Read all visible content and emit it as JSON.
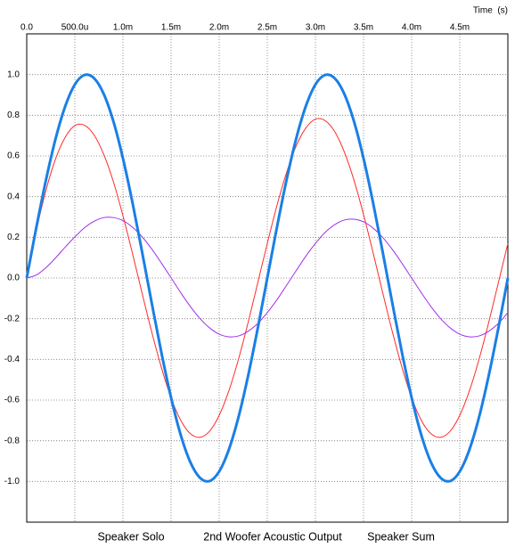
{
  "chart_data": {
    "type": "line",
    "xlabel": "Time  (s)",
    "x": [
      0,
      0.0001,
      0.0002,
      0.0003,
      0.0004,
      0.0005,
      0.0006,
      0.0007,
      0.0008,
      0.0009,
      0.001,
      0.0011,
      0.0012,
      0.0013,
      0.0014,
      0.0015,
      0.0016,
      0.0017,
      0.0018,
      0.0019,
      0.002,
      0.0021,
      0.0022,
      0.0023,
      0.0024,
      0.0025,
      0.0026,
      0.0027,
      0.0028,
      0.0029,
      0.003,
      0.0031,
      0.0032,
      0.0033,
      0.0034,
      0.0035,
      0.0036,
      0.0037,
      0.0038,
      0.0039,
      0.004,
      0.0041,
      0.0042,
      0.0043,
      0.0044,
      0.0045,
      0.0046,
      0.0047,
      0.0048,
      0.0049,
      0.005
    ],
    "series": [
      {
        "name": "Speaker Solo",
        "color": "#ff2a2a",
        "values": [
          0,
          0.234,
          0.431,
          0.586,
          0.692,
          0.749,
          0.751,
          0.703,
          0.608,
          0.474,
          0.306,
          0.119,
          -0.077,
          -0.267,
          -0.441,
          -0.589,
          -0.699,
          -0.765,
          -0.783,
          -0.753,
          -0.675,
          -0.555,
          -0.4,
          -0.22,
          -0.025,
          0.17,
          0.356,
          0.518,
          0.649,
          0.737,
          0.781,
          0.774,
          0.72,
          0.62,
          0.482,
          0.312,
          0.123,
          -0.074,
          -0.265,
          -0.44,
          -0.588,
          -0.699,
          -0.765,
          -0.783,
          -0.753,
          -0.675,
          -0.555,
          -0.4,
          -0.22,
          -0.025,
          0.17
        ]
      },
      {
        "name": "2nd Woofer Acoustic Output",
        "color": "#a030e8",
        "values": [
          0,
          0.015,
          0.051,
          0.099,
          0.152,
          0.202,
          0.247,
          0.279,
          0.297,
          0.297,
          0.282,
          0.249,
          0.202,
          0.142,
          0.073,
          0.001,
          -0.072,
          -0.14,
          -0.199,
          -0.245,
          -0.276,
          -0.289,
          -0.285,
          -0.262,
          -0.224,
          -0.17,
          -0.107,
          -0.036,
          0.036,
          0.107,
          0.17,
          0.224,
          0.262,
          0.285,
          0.289,
          0.276,
          0.245,
          0.199,
          0.14,
          0.072,
          0,
          -0.072,
          -0.14,
          -0.199,
          -0.245,
          -0.276,
          -0.289,
          -0.285,
          -0.262,
          -0.224,
          -0.17
        ]
      },
      {
        "name": "Speaker Sum",
        "color": "#1a7fe6",
        "values": [
          0,
          0.249,
          0.482,
          0.685,
          0.844,
          0.951,
          0.998,
          0.982,
          0.905,
          0.771,
          0.588,
          0.368,
          0.125,
          -0.125,
          -0.368,
          -0.588,
          -0.771,
          -0.905,
          -0.982,
          -0.998,
          -0.951,
          -0.844,
          -0.685,
          -0.482,
          -0.249,
          0,
          0.249,
          0.482,
          0.685,
          0.844,
          0.951,
          0.998,
          0.982,
          0.905,
          0.771,
          0.588,
          0.368,
          0.125,
          -0.125,
          -0.368,
          -0.588,
          -0.771,
          -0.905,
          -0.982,
          -0.998,
          -0.951,
          -0.844,
          -0.685,
          -0.482,
          -0.249,
          0
        ]
      }
    ],
    "xlim": [
      0,
      0.005
    ],
    "ylim": [
      -1.2,
      1.2
    ],
    "xticks": [
      {
        "value": 0,
        "label": "0.0"
      },
      {
        "value": 0.0005,
        "label": "500.0u"
      },
      {
        "value": 0.001,
        "label": "1.0m"
      },
      {
        "value": 0.0015,
        "label": "1.5m"
      },
      {
        "value": 0.002,
        "label": "2.0m"
      },
      {
        "value": 0.0025,
        "label": "2.5m"
      },
      {
        "value": 0.003,
        "label": "3.0m"
      },
      {
        "value": 0.0035,
        "label": "3.5m"
      },
      {
        "value": 0.004,
        "label": "4.0m"
      },
      {
        "value": 0.0045,
        "label": "4.5m"
      }
    ],
    "yticks": [
      {
        "value": 1,
        "label": "1.0"
      },
      {
        "value": 0.8,
        "label": "0.8"
      },
      {
        "value": 0.6,
        "label": "0.6"
      },
      {
        "value": 0.4,
        "label": "0.4"
      },
      {
        "value": 0.2,
        "label": "0.2"
      },
      {
        "value": 0,
        "label": "0.0"
      },
      {
        "value": -0.2,
        "label": "-0.2"
      },
      {
        "value": -0.4,
        "label": "-0.4"
      },
      {
        "value": -0.6,
        "label": "-0.6"
      },
      {
        "value": -0.8,
        "label": "-0.8"
      },
      {
        "value": -1,
        "label": "-1.0"
      }
    ],
    "grid": true
  }
}
